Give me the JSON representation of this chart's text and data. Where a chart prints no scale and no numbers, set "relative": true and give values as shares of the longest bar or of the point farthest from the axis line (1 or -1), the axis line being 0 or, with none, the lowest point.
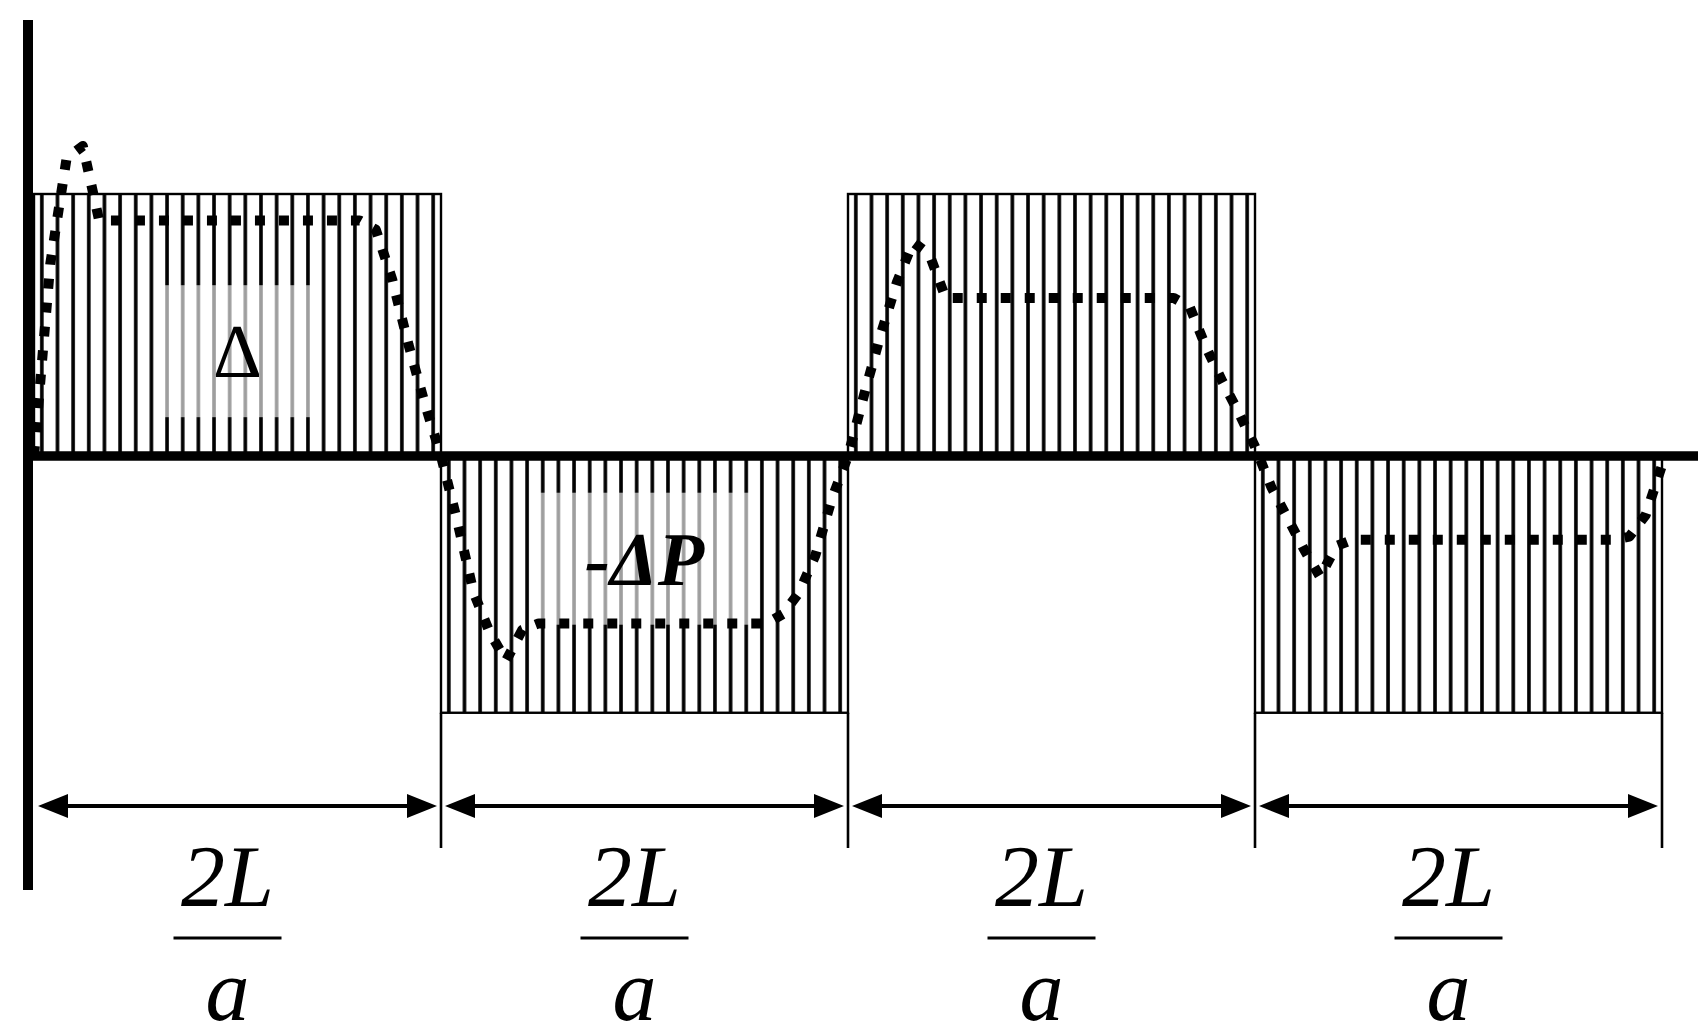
{
  "chart_data": [
    {
      "type": "bar",
      "relative": true,
      "categories": [
        "2L\na",
        "2L\na",
        "2L\na",
        "2L\na"
      ],
      "series": [
        {
          "type": "bar",
          "color": "#000000",
          "values": [
            1,
            -0.98,
            1,
            -0.98
          ]
        }
      ],
      "annotations": [
        "Δ",
        "-ΔP"
      ]
    },
    {
      "type": "line",
      "relative": true,
      "categories": [
        null,
        null,
        null,
        null,
        null,
        null,
        null,
        null,
        null,
        null,
        null,
        null,
        null,
        null,
        null,
        null,
        null,
        null,
        null,
        null,
        null,
        null,
        null,
        null,
        null,
        null,
        null,
        null,
        null,
        null,
        null,
        null,
        null,
        null,
        null,
        null,
        null,
        null,
        null,
        null,
        null,
        null,
        null,
        null,
        null,
        null,
        null,
        null,
        null,
        null,
        null,
        null,
        null,
        null,
        null,
        null,
        null,
        null,
        null,
        null,
        null,
        null,
        null,
        null,
        null,
        null,
        null,
        null,
        null,
        null,
        null,
        null,
        null,
        null,
        null,
        null,
        null,
        null,
        null,
        null,
        null,
        null,
        null,
        null,
        null,
        null,
        null,
        null,
        null,
        null,
        null,
        null,
        null,
        null,
        null,
        null,
        null,
        null,
        null,
        null,
        null
      ],
      "series": [
        {
          "color": "#000000",
          "line_style": "dotted",
          "values": [
            0,
            0.62,
            0.96,
            1,
            0.76,
            0.76,
            0.76,
            0.76,
            0.76,
            0.76,
            0.76,
            0.76,
            0.76,
            0.76,
            0.76,
            0.76,
            0.76,
            0.76,
            0.76,
            0.76,
            0.76,
            0.73,
            0.57,
            0.36,
            0.17,
            0,
            -0.21,
            -0.44,
            -0.57,
            -0.66,
            -0.56,
            -0.54,
            -0.54,
            -0.54,
            -0.54,
            -0.54,
            -0.54,
            -0.54,
            -0.54,
            -0.54,
            -0.54,
            -0.54,
            -0.54,
            -0.54,
            -0.54,
            -0.54,
            -0.51,
            -0.44,
            -0.32,
            -0.14,
            0,
            0.2,
            0.39,
            0.56,
            0.69,
            0.65,
            0.51,
            0.51,
            0.51,
            0.51,
            0.51,
            0.51,
            0.51,
            0.51,
            0.51,
            0.51,
            0.51,
            0.51,
            0.51,
            0.51,
            0.51,
            0.48,
            0.35,
            0.24,
            0.14,
            0.03,
            -0.1,
            -0.2,
            -0.3,
            -0.39,
            -0.29,
            -0.27,
            -0.27,
            -0.27,
            -0.27,
            -0.27,
            -0.27,
            -0.27,
            -0.27,
            -0.27,
            -0.27,
            -0.27,
            -0.27,
            -0.27,
            -0.27,
            -0.27,
            -0.27,
            -0.27,
            -0.26,
            -0.19,
            -0.03
          ]
        }
      ]
    }
  ]
}
